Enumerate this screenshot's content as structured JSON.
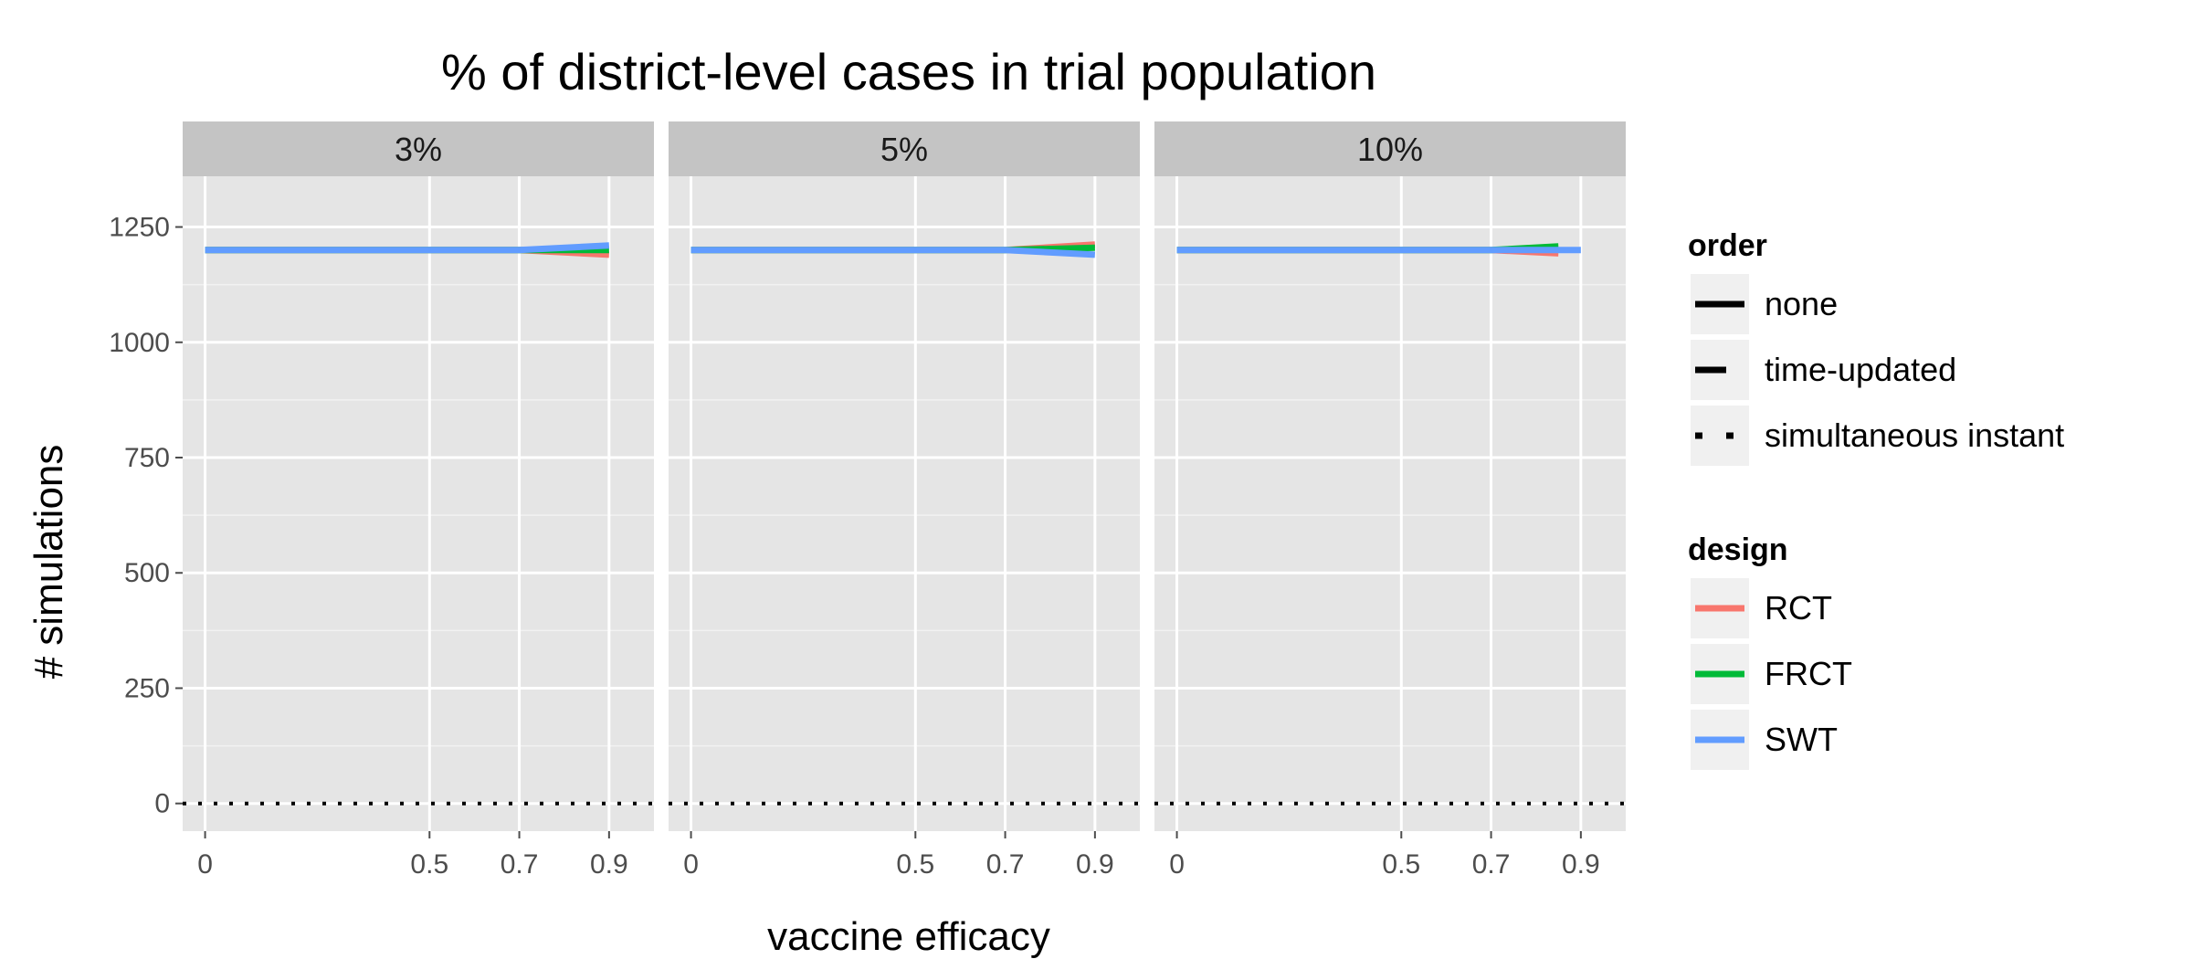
{
  "chart_data": {
    "type": "line",
    "title": "% of district-level cases in trial population",
    "xlabel": "vaccine efficacy",
    "ylabel": "# simulations",
    "facets": [
      "3%",
      "5%",
      "10%"
    ],
    "xlim": [
      -0.05,
      1.0
    ],
    "ylim": [
      -60,
      1360
    ],
    "xticks": [
      0,
      0.5,
      0.7,
      0.9
    ],
    "xtick_labels": [
      "0",
      "0.5",
      "0.7",
      "0.9"
    ],
    "yticks": [
      0,
      250,
      500,
      750,
      1000,
      1250
    ],
    "ytick_labels": [
      "0",
      "250",
      "500",
      "750",
      "1000",
      "1250"
    ],
    "grid": true,
    "legend_position": "right",
    "legends": [
      {
        "title": "order",
        "entries": [
          {
            "label": "none",
            "style": "solid"
          },
          {
            "label": "time-updated",
            "style": "dashed"
          },
          {
            "label": "simultaneous instant",
            "style": "dotted"
          }
        ]
      },
      {
        "title": "design",
        "entries": [
          {
            "label": "RCT",
            "color": "#F8766D"
          },
          {
            "label": "FRCT",
            "color": "#00BA38"
          },
          {
            "label": "SWT",
            "color": "#619CFF"
          }
        ]
      }
    ],
    "panels": [
      {
        "facet": "3%",
        "series": [
          {
            "design": "RCT",
            "order": "none",
            "color": "#F8766D",
            "x": [
              0,
              0.5,
              0.7,
              0.9
            ],
            "y": [
              1200,
              1200,
              1200,
              1190
            ]
          },
          {
            "design": "FRCT",
            "order": "none",
            "color": "#00BA38",
            "x": [
              0,
              0.5,
              0.7,
              0.9
            ],
            "y": [
              1200,
              1200,
              1200,
              1200
            ]
          },
          {
            "design": "SWT",
            "order": "none",
            "color": "#619CFF",
            "x": [
              0,
              0.5,
              0.7,
              0.9
            ],
            "y": [
              1200,
              1200,
              1200,
              1210
            ]
          },
          {
            "design": "all",
            "order": "simultaneous instant",
            "color": "#000000",
            "x": [
              -0.05,
              1.0
            ],
            "y": [
              0,
              0
            ]
          }
        ]
      },
      {
        "facet": "5%",
        "series": [
          {
            "design": "RCT",
            "order": "none",
            "color": "#F8766D",
            "x": [
              0,
              0.5,
              0.7,
              0.9
            ],
            "y": [
              1200,
              1200,
              1200,
              1212
            ]
          },
          {
            "design": "FRCT",
            "order": "none",
            "color": "#00BA38",
            "x": [
              0,
              0.5,
              0.7,
              0.9
            ],
            "y": [
              1200,
              1200,
              1200,
              1205
            ]
          },
          {
            "design": "SWT",
            "order": "none",
            "color": "#619CFF",
            "x": [
              0,
              0.5,
              0.7,
              0.9
            ],
            "y": [
              1200,
              1200,
              1200,
              1190
            ]
          },
          {
            "design": "all",
            "order": "simultaneous instant",
            "color": "#000000",
            "x": [
              -0.05,
              1.0
            ],
            "y": [
              0,
              0
            ]
          }
        ]
      },
      {
        "facet": "10%",
        "series": [
          {
            "design": "RCT",
            "order": "none",
            "color": "#F8766D",
            "x": [
              0,
              0.5,
              0.7,
              0.85
            ],
            "y": [
              1200,
              1200,
              1200,
              1193
            ]
          },
          {
            "design": "FRCT",
            "order": "none",
            "color": "#00BA38",
            "x": [
              0,
              0.5,
              0.7,
              0.85
            ],
            "y": [
              1200,
              1200,
              1200,
              1208
            ]
          },
          {
            "design": "SWT",
            "order": "none",
            "color": "#619CFF",
            "x": [
              0,
              0.5,
              0.7,
              0.9
            ],
            "y": [
              1200,
              1200,
              1200,
              1200
            ]
          },
          {
            "design": "all",
            "order": "simultaneous instant",
            "color": "#000000",
            "x": [
              -0.05,
              1.0
            ],
            "y": [
              0,
              0
            ]
          }
        ]
      }
    ]
  }
}
